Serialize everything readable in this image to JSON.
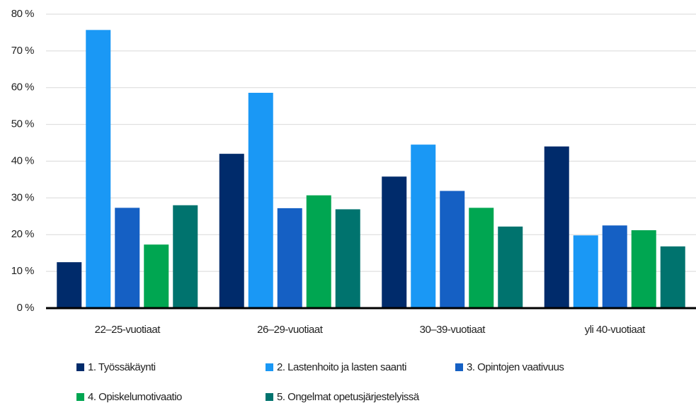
{
  "chart_data": {
    "type": "bar",
    "categories": [
      "22–25-vuotiaat",
      "26–29-vuotiaat",
      "30–39-vuotiaat",
      "yli 40-vuotiaat"
    ],
    "series": [
      {
        "name": "1. Työssäkäynti",
        "color": "#002b6b",
        "values": [
          12.5,
          42,
          35.8,
          44
        ]
      },
      {
        "name": "2. Lastenhoito ja lasten saanti",
        "color": "#1a98f5",
        "values": [
          75.7,
          58.6,
          44.5,
          19.8
        ]
      },
      {
        "name": "3. Opintojen vaativuus",
        "color": "#1560c4",
        "values": [
          27.3,
          27.2,
          31.9,
          22.5
        ]
      },
      {
        "name": "4. Opiskelumotivaatio",
        "color": "#00a651",
        "values": [
          17.3,
          30.7,
          27.3,
          21.2
        ]
      },
      {
        "name": "5. Ongelmat opetusjärjestelyissä",
        "color": "#00736e",
        "values": [
          28,
          26.9,
          22.2,
          16.8
        ]
      }
    ],
    "ylim": [
      0,
      80
    ],
    "yticks": [
      {
        "value": 0,
        "label": "0 %"
      },
      {
        "value": 10,
        "label": "10 %"
      },
      {
        "value": 20,
        "label": "20 %"
      },
      {
        "value": 30,
        "label": "30 %"
      },
      {
        "value": 40,
        "label": "40 %"
      },
      {
        "value": 50,
        "label": "50 %"
      },
      {
        "value": 60,
        "label": "60 %"
      },
      {
        "value": 70,
        "label": "70 %"
      },
      {
        "value": 80,
        "label": "80 %"
      }
    ],
    "grid": true
  }
}
